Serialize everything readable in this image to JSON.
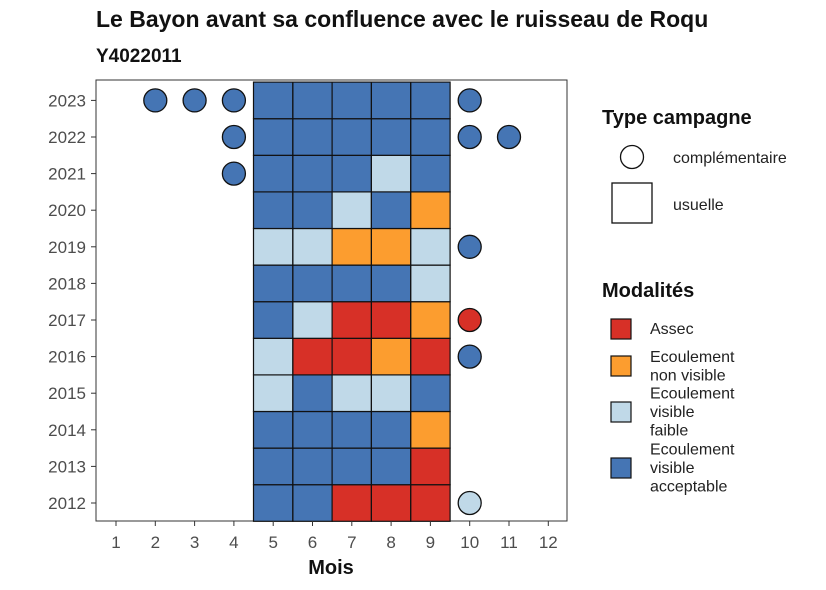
{
  "chart_data": {
    "type": "heatmap",
    "title": "Le Bayon avant sa confluence avec le ruisseau de Roqu",
    "subtitle": "Y4022011",
    "xlabel": "Mois",
    "x_ticks": [
      1,
      2,
      3,
      4,
      5,
      6,
      7,
      8,
      9,
      10,
      11,
      12
    ],
    "years": [
      2012,
      2013,
      2014,
      2015,
      2016,
      2017,
      2018,
      2019,
      2020,
      2021,
      2022,
      2023
    ],
    "modalities": [
      {
        "key": "assec",
        "label_lines": [
          "Assec"
        ],
        "color": "#d73027"
      },
      {
        "key": "nonvisible",
        "label_lines": [
          "Ecoulement",
          "non visible"
        ],
        "color": "#fc9d2f"
      },
      {
        "key": "faible",
        "label_lines": [
          "Ecoulement",
          "visible",
          "faible"
        ],
        "color": "#c0d9e8"
      },
      {
        "key": "acceptable",
        "label_lines": [
          "Ecoulement",
          "visible",
          "acceptable"
        ],
        "color": "#4575b4"
      }
    ],
    "campaign_types": [
      {
        "key": "complementaire",
        "label": "complémentaire",
        "shape": "circle"
      },
      {
        "key": "usuelle",
        "label": "usuelle",
        "shape": "square"
      }
    ],
    "legend_titles": {
      "campaign": "Type campagne",
      "modality": "Modalités"
    },
    "usual_observations": [
      {
        "year": 2012,
        "months": {
          "5": "acceptable",
          "6": "acceptable",
          "7": "assec",
          "8": "assec",
          "9": "assec"
        }
      },
      {
        "year": 2013,
        "months": {
          "5": "acceptable",
          "6": "acceptable",
          "7": "acceptable",
          "8": "acceptable",
          "9": "assec"
        }
      },
      {
        "year": 2014,
        "months": {
          "5": "acceptable",
          "6": "acceptable",
          "7": "acceptable",
          "8": "acceptable",
          "9": "nonvisible"
        }
      },
      {
        "year": 2015,
        "months": {
          "5": "faible",
          "6": "acceptable",
          "7": "faible",
          "8": "faible",
          "9": "acceptable"
        }
      },
      {
        "year": 2016,
        "months": {
          "5": "faible",
          "6": "assec",
          "7": "assec",
          "8": "nonvisible",
          "9": "assec"
        }
      },
      {
        "year": 2017,
        "months": {
          "5": "acceptable",
          "6": "faible",
          "7": "assec",
          "8": "assec",
          "9": "nonvisible"
        }
      },
      {
        "year": 2018,
        "months": {
          "5": "acceptable",
          "6": "acceptable",
          "7": "acceptable",
          "8": "acceptable",
          "9": "faible"
        }
      },
      {
        "year": 2019,
        "months": {
          "5": "faible",
          "6": "faible",
          "7": "nonvisible",
          "8": "nonvisible",
          "9": "faible"
        }
      },
      {
        "year": 2020,
        "months": {
          "5": "acceptable",
          "6": "acceptable",
          "7": "faible",
          "8": "acceptable",
          "9": "nonvisible"
        }
      },
      {
        "year": 2021,
        "months": {
          "5": "acceptable",
          "6": "acceptable",
          "7": "acceptable",
          "8": "faible",
          "9": "acceptable"
        }
      },
      {
        "year": 2022,
        "months": {
          "5": "acceptable",
          "6": "acceptable",
          "7": "acceptable",
          "8": "acceptable",
          "9": "acceptable"
        }
      },
      {
        "year": 2023,
        "months": {
          "5": "acceptable",
          "6": "acceptable",
          "7": "acceptable",
          "8": "acceptable",
          "9": "acceptable"
        }
      }
    ],
    "complementary_observations": [
      {
        "year": 2023,
        "month": 2,
        "modality": "acceptable"
      },
      {
        "year": 2023,
        "month": 3,
        "modality": "acceptable"
      },
      {
        "year": 2023,
        "month": 4,
        "modality": "acceptable"
      },
      {
        "year": 2023,
        "month": 10,
        "modality": "acceptable"
      },
      {
        "year": 2022,
        "month": 4,
        "modality": "acceptable"
      },
      {
        "year": 2022,
        "month": 10,
        "modality": "acceptable"
      },
      {
        "year": 2022,
        "month": 11,
        "modality": "acceptable"
      },
      {
        "year": 2021,
        "month": 4,
        "modality": "acceptable"
      },
      {
        "year": 2019,
        "month": 10,
        "modality": "acceptable"
      },
      {
        "year": 2017,
        "month": 10,
        "modality": "assec"
      },
      {
        "year": 2016,
        "month": 10,
        "modality": "acceptable"
      },
      {
        "year": 2012,
        "month": 10,
        "modality": "faible"
      }
    ]
  }
}
